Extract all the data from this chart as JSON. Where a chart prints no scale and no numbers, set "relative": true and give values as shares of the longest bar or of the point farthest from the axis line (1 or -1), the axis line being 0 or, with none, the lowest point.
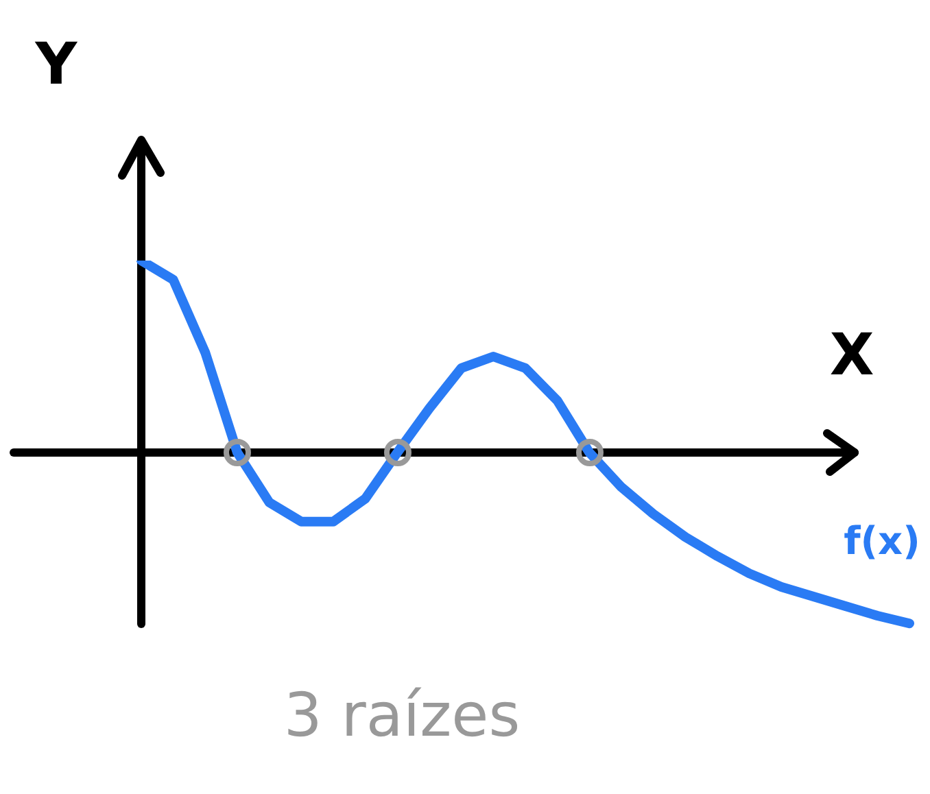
{
  "chart_data": {
    "type": "line",
    "relative": true,
    "xlabel": "X",
    "ylabel": "Y",
    "legend": false,
    "categories": [
      null,
      null,
      null,
      null,
      null,
      null,
      null,
      null,
      null,
      null,
      null,
      null,
      null,
      null,
      null,
      null,
      null,
      null,
      null,
      null,
      null,
      null,
      null,
      null,
      null
    ],
    "series": [
      {
        "name": "f(x)",
        "color": "#2a7bf4",
        "values": [
          1.0,
          0.9,
          0.52,
          0,
          -0.26,
          -0.36,
          -0.36,
          -0.24,
          0,
          0.23,
          0.44,
          0.5,
          0.44,
          0.27,
          0,
          -0.18,
          -0.32,
          -0.44,
          -0.54,
          -0.63,
          -0.7,
          -0.75,
          -0.8,
          -0.85,
          -0.89
        ]
      }
    ],
    "annotations": [
      "3 raízes"
    ]
  }
}
